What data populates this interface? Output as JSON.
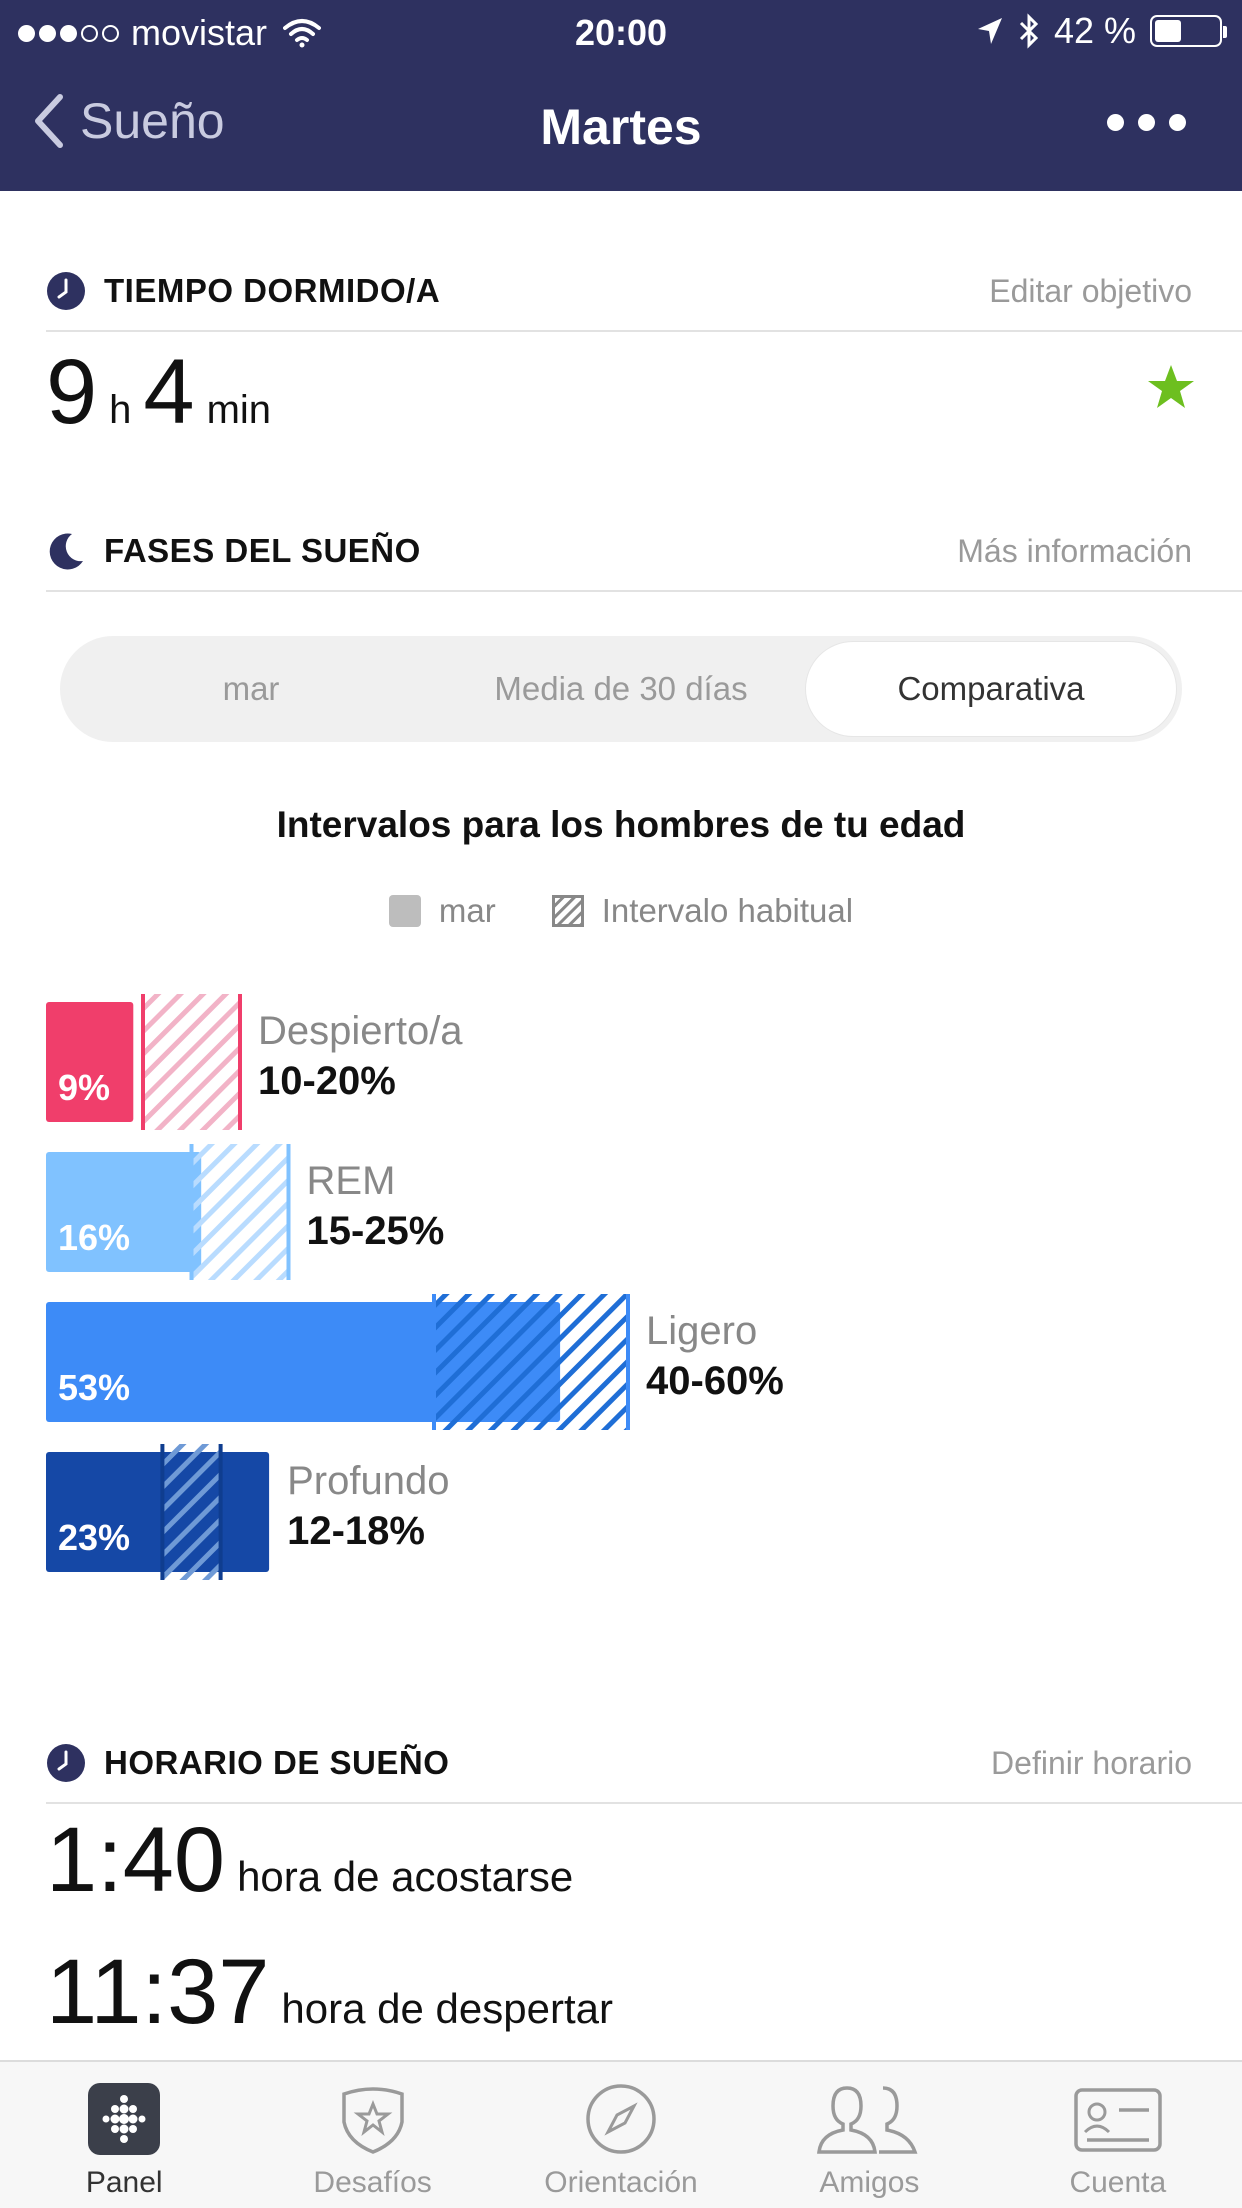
{
  "status_bar": {
    "carrier": "movistar",
    "time": "20:00",
    "battery": "42 %",
    "battery_level": 0.42
  },
  "nav": {
    "back_label": "Sueño",
    "title": "Martes"
  },
  "sleep_time": {
    "title": "TIEMPO DORMIDO/A",
    "link": "Editar objetivo",
    "hours": "9",
    "hours_unit": "h",
    "minutes": "4",
    "minutes_unit": "min"
  },
  "phases": {
    "title": "FASES DEL SUEÑO",
    "link": "Más información",
    "segments": [
      {
        "label": "mar",
        "active": false
      },
      {
        "label": "Media de 30 días",
        "active": false
      },
      {
        "label": "Comparativa",
        "active": true
      }
    ],
    "chart_title": "Intervalos para los hombres de tu edad",
    "legend": {
      "solid": "mar",
      "hatched": "Intervalo habitual"
    }
  },
  "chart_data": {
    "type": "bar",
    "orientation": "horizontal",
    "title": "Intervalos para los hombres de tu edad",
    "xlabel": "",
    "ylabel": "",
    "xlim": [
      0,
      75
    ],
    "legend": [
      "mar",
      "Intervalo habitual"
    ],
    "series": [
      {
        "name": "mar",
        "values": [
          9,
          16,
          53,
          23
        ]
      },
      {
        "name": "Intervalo habitual",
        "ranges": [
          [
            10,
            20
          ],
          [
            15,
            25
          ],
          [
            40,
            60
          ],
          [
            12,
            18
          ]
        ]
      }
    ],
    "categories": [
      "Despierto/a",
      "REM",
      "Ligero",
      "Profundo"
    ],
    "value_labels": [
      "9%",
      "16%",
      "53%",
      "23%"
    ],
    "range_labels": [
      "10-20%",
      "15-25%",
      "40-60%",
      "12-18%"
    ],
    "colors": [
      "#f03e6b",
      "#80c2ff",
      "#3d8bf7",
      "#1548a6"
    ],
    "hatch_colors": [
      "#f2b3c7",
      "#b9dcff",
      "#1f6ed6",
      "#6f9ad6"
    ]
  },
  "schedule": {
    "title": "HORARIO DE SUEÑO",
    "link": "Definir horario",
    "bedtime": "1:40",
    "bedtime_label": "hora de acostarse",
    "wake": "11:37",
    "wake_label": "hora de despertar"
  },
  "tabs": [
    {
      "label": "Panel",
      "icon": "panel-icon",
      "active": true
    },
    {
      "label": "Desafíos",
      "icon": "challenge-badge-icon",
      "active": false
    },
    {
      "label": "Orientación",
      "icon": "compass-icon",
      "active": false
    },
    {
      "label": "Amigos",
      "icon": "friends-icon",
      "active": false
    },
    {
      "label": "Cuenta",
      "icon": "account-card-icon",
      "active": false
    }
  ],
  "colors": {
    "header": "#2e3160",
    "star": "#6dbf1f",
    "link": "#9a9a9a"
  }
}
